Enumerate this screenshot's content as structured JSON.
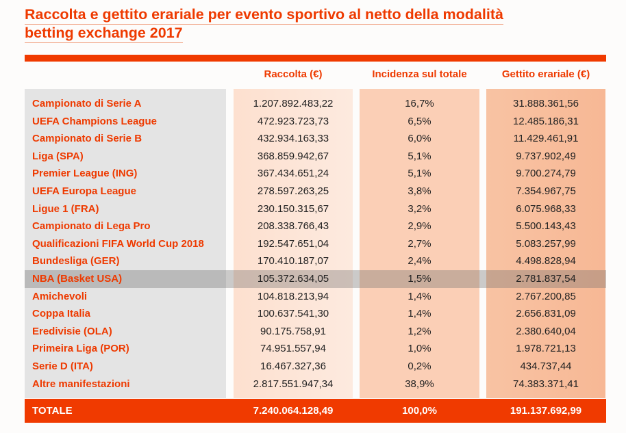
{
  "title_line1": "Raccolta e gettito erariale per evento sportivo al netto della modalità",
  "title_line2": "betting exchange 2017",
  "headers": [
    "Raccolta (€)",
    "Incidenza sul totale",
    "Gettito erariale (€)"
  ],
  "rows": [
    {
      "label": "Campionato di Serie A",
      "raccolta": "1.207.892.483,22",
      "incidenza": "16,7%",
      "gettito": "31.888.361,56"
    },
    {
      "label": "UEFA Champions League",
      "raccolta": "472.923.723,73",
      "incidenza": "6,5%",
      "gettito": "12.485.186,31"
    },
    {
      "label": "Campionato di Serie B",
      "raccolta": "432.934.163,33",
      "incidenza": "6,0%",
      "gettito": "11.429.461,91"
    },
    {
      "label": "Liga (SPA)",
      "raccolta": "368.859.942,67",
      "incidenza": "5,1%",
      "gettito": "9.737.902,49"
    },
    {
      "label": "Premier League (ING)",
      "raccolta": "367.434.651,24",
      "incidenza": "5,1%",
      "gettito": "9.700.274,79"
    },
    {
      "label": "UEFA Europa League",
      "raccolta": "278.597.263,25",
      "incidenza": "3,8%",
      "gettito": "7.354.967,75"
    },
    {
      "label": "Ligue 1 (FRA)",
      "raccolta": "230.150.315,67",
      "incidenza": "3,2%",
      "gettito": "6.075.968,33"
    },
    {
      "label": "Campionato di Lega Pro",
      "raccolta": "208.338.766,43",
      "incidenza": "2,9%",
      "gettito": "5.500.143,43"
    },
    {
      "label": "Qualificazioni FIFA World Cup 2018",
      "raccolta": "192.547.651,04",
      "incidenza": "2,7%",
      "gettito": "5.083.257,99"
    },
    {
      "label": "Bundesliga (GER)",
      "raccolta": "170.410.187,07",
      "incidenza": "2,4%",
      "gettito": "4.498.828,94"
    },
    {
      "label": "NBA (Basket USA)",
      "raccolta": "105.372.634,05",
      "incidenza": "1,5%",
      "gettito": "2.781.837,54",
      "highlighted": true
    },
    {
      "label": "Amichevoli",
      "raccolta": "104.818.213,94",
      "incidenza": "1,4%",
      "gettito": "2.767.200,85"
    },
    {
      "label": "Coppa Italia",
      "raccolta": "100.637.541,30",
      "incidenza": "1,4%",
      "gettito": "2.656.831,09"
    },
    {
      "label": "Eredivisie (OLA)",
      "raccolta": "90.175.758,91",
      "incidenza": "1,2%",
      "gettito": "2.380.640,04"
    },
    {
      "label": "Primeira Liga (POR)",
      "raccolta": "74.951.557,94",
      "incidenza": "1,0%",
      "gettito": "1.978.721,13"
    },
    {
      "label": "Serie D (ITA)",
      "raccolta": "16.467.327,36",
      "incidenza": "0,2%",
      "gettito": "434.737,44"
    },
    {
      "label": "Altre manifestazioni",
      "raccolta": "2.817.551.947,34",
      "incidenza": "38,9%",
      "gettito": "74.383.371,41"
    }
  ],
  "total": {
    "label": "TOTALE",
    "raccolta": "7.240.064.128,49",
    "incidenza": "100,0%",
    "gettito": "191.137.692,99"
  },
  "colors": {
    "accent": "#f03a00",
    "label_col": "#e4e4e4",
    "col1": "#fde4d4",
    "col2": "#fbcfb4",
    "col3": "#f8bd9a"
  }
}
